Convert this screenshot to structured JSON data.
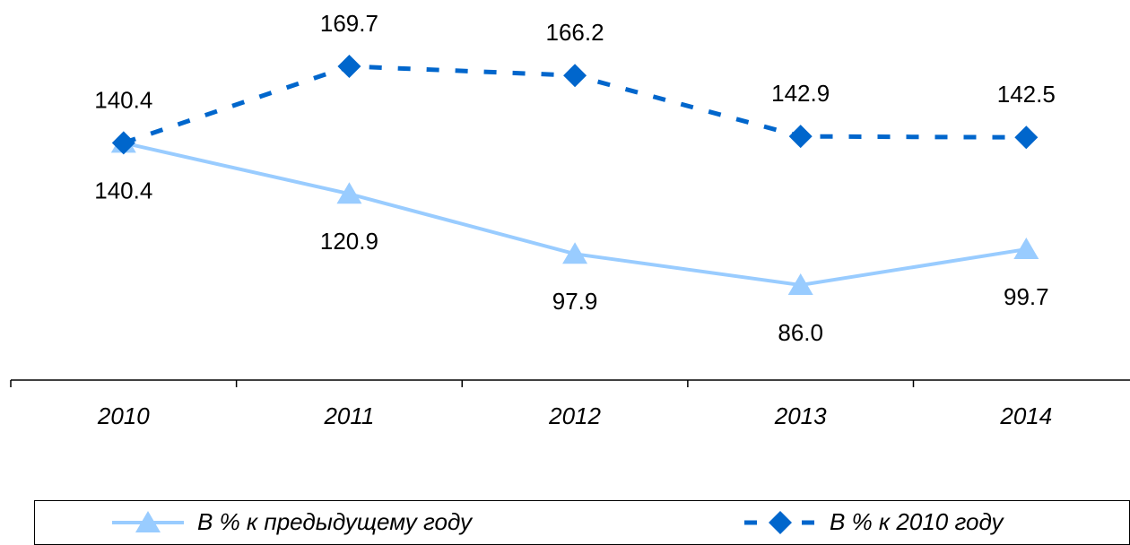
{
  "chart_data": {
    "type": "line",
    "categories": [
      "2010",
      "2011",
      "2012",
      "2013",
      "2014"
    ],
    "series": [
      {
        "name": "В % к предыдущему году",
        "color": "#99ccff",
        "marker": "triangle",
        "dashed": false,
        "values": [
          140.4,
          120.9,
          97.9,
          86.0,
          99.7
        ],
        "value_labels": [
          "140.4",
          "120.9",
          "97.9",
          "86.0",
          "99.7"
        ]
      },
      {
        "name": "В % к 2010 году",
        "color": "#0066cc",
        "marker": "diamond",
        "dashed": true,
        "values": [
          140.4,
          169.7,
          166.2,
          142.9,
          142.5
        ],
        "value_labels": [
          "140.4",
          "169.7",
          "166.2",
          "142.9",
          "142.5"
        ]
      }
    ]
  }
}
